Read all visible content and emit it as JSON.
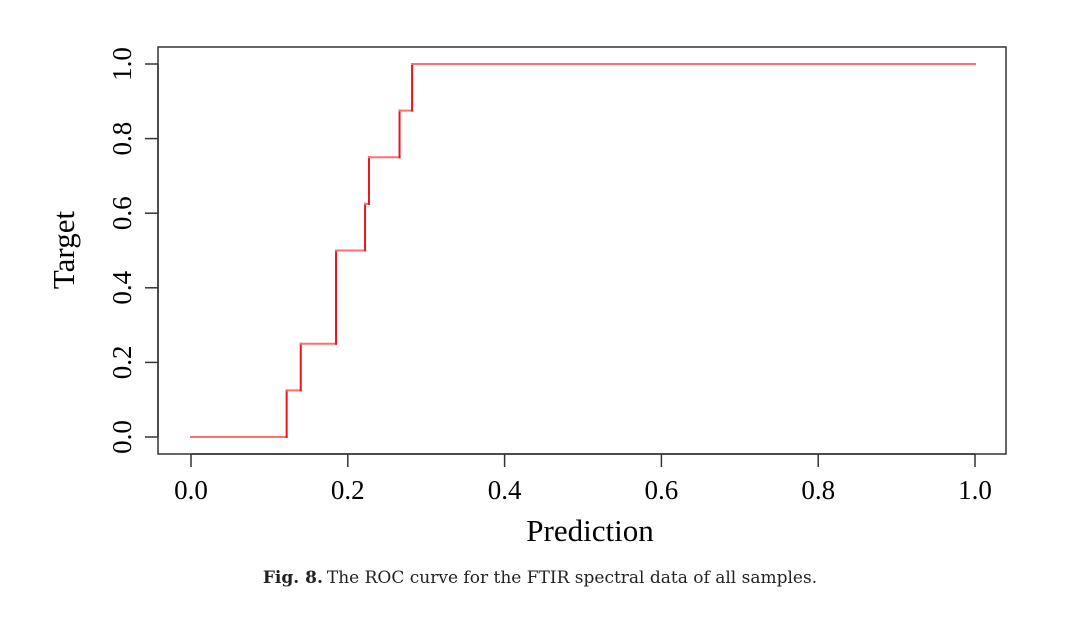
{
  "chart_data": {
    "type": "line",
    "title": "",
    "xlabel": "Prediction",
    "ylabel": "Target",
    "xlim": [
      0.0,
      1.0
    ],
    "ylim": [
      0.0,
      1.0
    ],
    "xticks": [
      "0.0",
      "0.2",
      "0.4",
      "0.6",
      "0.8",
      "1.0"
    ],
    "yticks": [
      "0.0",
      "0.2",
      "0.4",
      "0.6",
      "0.8",
      "1.0"
    ],
    "grid": false,
    "series": [
      {
        "name": "ROC",
        "color": "#ff6f6f",
        "step_color": "#e8141e",
        "x": [
          0.0,
          0.122,
          0.122,
          0.14,
          0.14,
          0.185,
          0.185,
          0.222,
          0.222,
          0.227,
          0.227,
          0.266,
          0.266,
          0.282,
          0.282,
          1.0
        ],
        "y": [
          0.0,
          0.0,
          0.125,
          0.125,
          0.25,
          0.25,
          0.5,
          0.5,
          0.625,
          0.625,
          0.75,
          0.75,
          0.875,
          0.875,
          1.0,
          1.0
        ]
      }
    ]
  },
  "caption": {
    "label": "Fig. 8.",
    "text": "The ROC curve for the FTIR spectral data of all samples."
  }
}
